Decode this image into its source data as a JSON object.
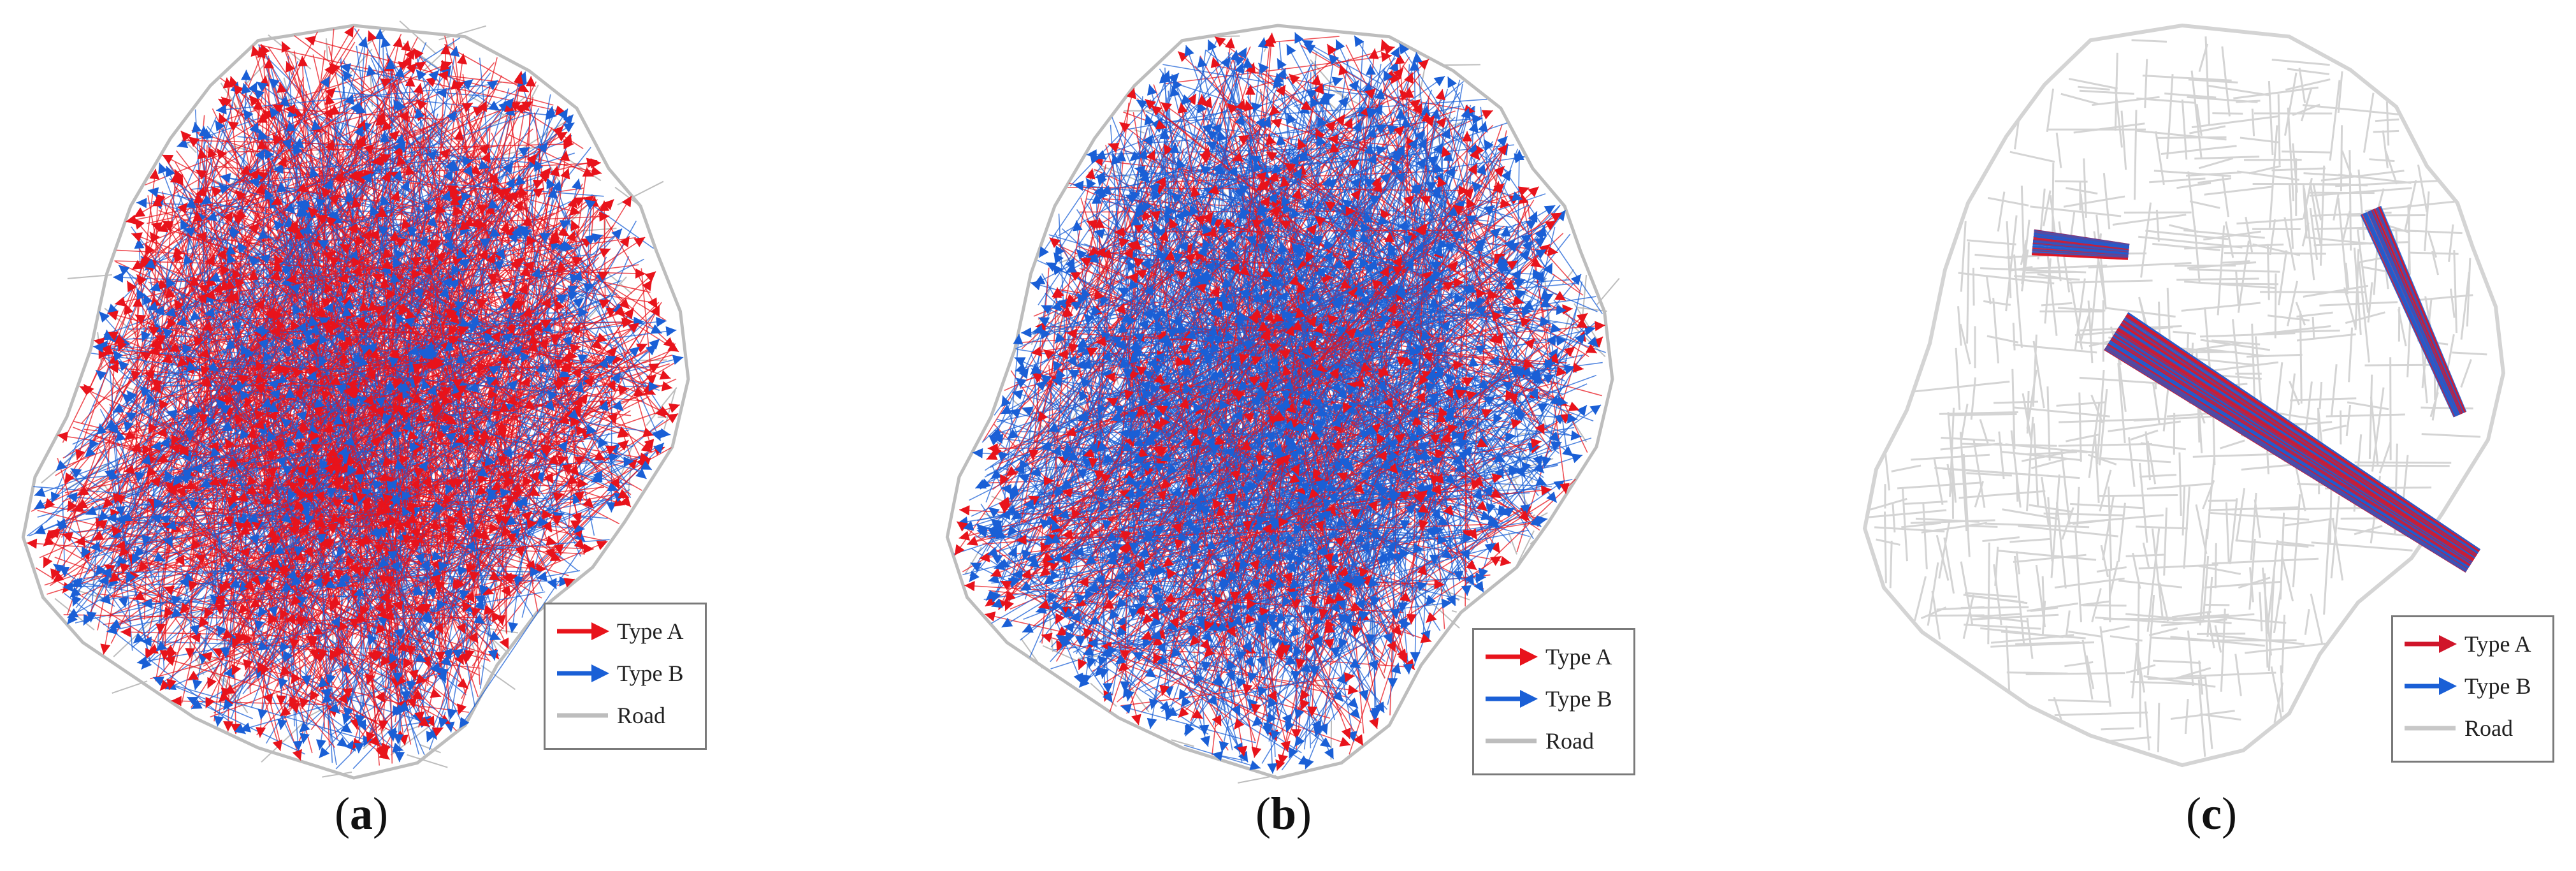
{
  "panels": [
    {
      "id": "a",
      "caption_prefix": "(",
      "caption_letter": "a",
      "caption_suffix": ")",
      "legend": [
        {
          "label": "Type A",
          "symbol": "arrow",
          "color": "#e8131b"
        },
        {
          "label": "Type B",
          "symbol": "arrow",
          "color": "#1a5fd6"
        },
        {
          "label": "Road",
          "symbol": "line",
          "color": "#bdbdbd"
        }
      ]
    },
    {
      "id": "b",
      "caption_prefix": "(",
      "caption_letter": "b",
      "caption_suffix": ")",
      "legend": [
        {
          "label": "Type A",
          "symbol": "arrow",
          "color": "#e8131b"
        },
        {
          "label": "Type B",
          "symbol": "arrow",
          "color": "#1a5fd6"
        },
        {
          "label": "Road",
          "symbol": "line",
          "color": "#bdbdbd"
        }
      ]
    },
    {
      "id": "c",
      "caption_prefix": "(",
      "caption_letter": "c",
      "caption_suffix": ")",
      "legend": [
        {
          "label": "Type A",
          "symbol": "arrow",
          "color": "#d0152a"
        },
        {
          "label": "Type B",
          "symbol": "arrow",
          "color": "#1a5fd6"
        },
        {
          "label": "Road",
          "symbol": "line",
          "color": "#c8c8c8"
        }
      ]
    }
  ],
  "colors": {
    "type_a": "#e8131b",
    "type_b": "#1a5fd6",
    "road": "#bdbdbd",
    "road_light": "#d4d4d4"
  }
}
